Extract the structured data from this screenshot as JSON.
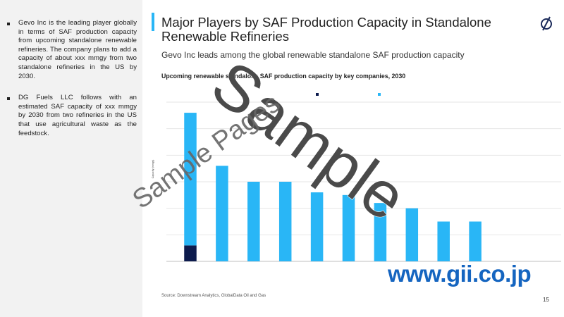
{
  "left_panel": {
    "bullets": [
      "Gevo Inc is the leading player globally in terms of SAF production capacity from upcoming standalone renewable refineries. The company plans to add a capacity of about xxx mmgy from two standalone refineries in the US by 2030.",
      "DG Fuels LLC follows with an estimated SAF capacity of xxx mmgy by 2030 from two refineries in the US that use agricultural waste as the feedstock."
    ]
  },
  "header": {
    "title": "Major Players by SAF Production Capacity in Standalone Renewable Refineries",
    "logo_icon": "globaldata-logo-icon",
    "subtitle": "Gevo Inc leads among the global renewable standalone SAF production capacity"
  },
  "footer": {
    "source": "Source: Downstream Analytics, GlobalData Oil and Gas",
    "page_number": "15",
    "url": "www.gii.co.jp"
  },
  "watermark": {
    "big": "Sample",
    "small": "Sample Pages"
  },
  "colors": {
    "accent": "#29b6f6",
    "dark": "#0d1b4d",
    "url": "#1565c0"
  },
  "chart_data": {
    "type": "bar",
    "title": "Upcoming renewable standalone SAF production capacity by key companies, 2030",
    "ylabel": "Capacity (mmgy)",
    "ylim": [
      0,
      300
    ],
    "grid": true,
    "legend_position": "top",
    "series": [
      {
        "color": "#0d1b4d",
        "values": [
          30,
          0,
          0,
          0,
          0,
          0,
          0,
          0,
          0,
          0
        ]
      },
      {
        "color": "#29b6f6",
        "values": [
          250,
          180,
          150,
          150,
          130,
          125,
          110,
          100,
          75,
          75
        ]
      }
    ]
  }
}
